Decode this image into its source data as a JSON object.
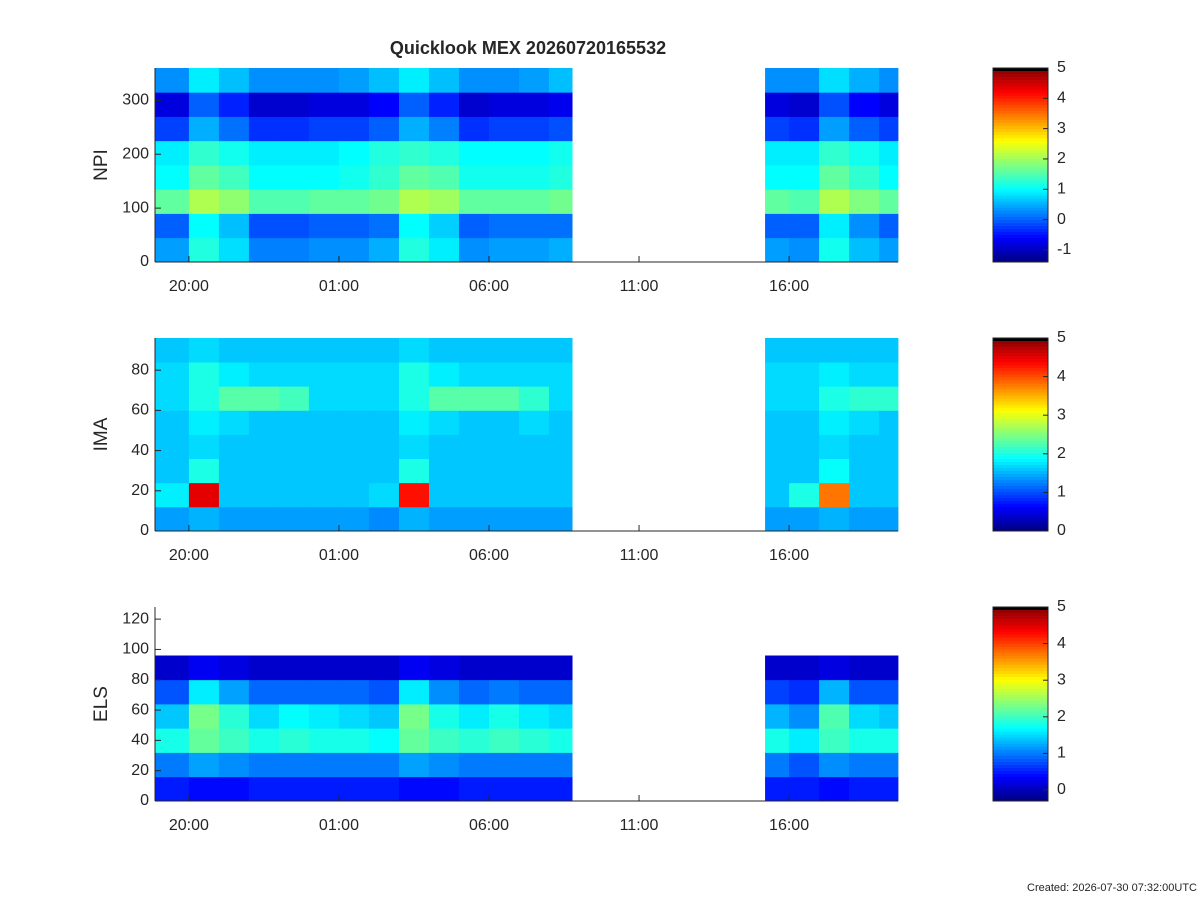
{
  "chart_data": [
    {
      "type": "heatmap",
      "title": "Quicklook MEX 20260720165532",
      "ylabel": "NPI",
      "colormap": "jet",
      "xlim": [
        18.87,
        43.63
      ],
      "xticks": [
        {
          "value": 20,
          "label": "20:00"
        },
        {
          "value": 25,
          "label": "01:00"
        },
        {
          "value": 30,
          "label": "06:00"
        },
        {
          "value": 35,
          "label": "11:00"
        },
        {
          "value": 40,
          "label": "16:00"
        }
      ],
      "ylim": [
        0,
        360
      ],
      "yticks": [
        0,
        100,
        200,
        300
      ],
      "x": [
        18.87,
        20,
        21,
        22,
        23,
        24,
        25,
        26,
        27,
        28,
        29,
        30,
        31,
        32,
        32.77,
        39.2,
        40,
        41,
        42,
        43,
        43.63
      ],
      "y": [
        0,
        45,
        90,
        135,
        180,
        225,
        270,
        315,
        360
      ],
      "z": [
        [
          0.4,
          0.0,
          1.6,
          1.0,
          0.9,
          -0.2,
          -0.8,
          0.3
        ],
        [
          1.2,
          1.0,
          2.1,
          1.6,
          1.3,
          0.5,
          0.0,
          0.9
        ],
        [
          0.8,
          0.6,
          1.9,
          1.4,
          1.1,
          0.1,
          -0.4,
          0.6
        ],
        [
          0.2,
          -0.1,
          1.5,
          1.0,
          0.9,
          -0.3,
          -0.9,
          0.3
        ],
        [
          0.2,
          -0.1,
          1.5,
          1.0,
          0.9,
          -0.3,
          -0.9,
          0.3
        ],
        [
          0.3,
          0.0,
          1.6,
          1.0,
          0.9,
          -0.2,
          -0.8,
          0.3
        ],
        [
          0.3,
          0.0,
          1.6,
          1.1,
          1.0,
          -0.2,
          -0.8,
          0.4
        ],
        [
          0.5,
          0.1,
          1.7,
          1.3,
          1.2,
          0.0,
          -0.6,
          0.6
        ],
        [
          1.2,
          1.0,
          2.1,
          1.6,
          1.3,
          0.5,
          0.0,
          0.9
        ],
        [
          0.9,
          0.7,
          2.0,
          1.5,
          1.2,
          0.2,
          -0.4,
          0.6
        ],
        [
          0.3,
          0.0,
          1.6,
          1.1,
          1.0,
          -0.3,
          -0.9,
          0.3
        ],
        [
          0.4,
          0.1,
          1.6,
          1.1,
          1.0,
          -0.2,
          -0.8,
          0.3
        ],
        [
          0.4,
          0.1,
          1.6,
          1.1,
          1.0,
          -0.2,
          -0.8,
          0.4
        ],
        [
          0.5,
          0.1,
          1.7,
          1.2,
          1.1,
          -0.1,
          -0.7,
          0.6
        ],
        [
          null,
          null,
          null,
          null,
          null,
          null,
          null,
          null
        ],
        [
          0.4,
          0.0,
          1.6,
          1.0,
          0.9,
          -0.2,
          -0.8,
          0.3
        ],
        [
          0.3,
          0.0,
          1.5,
          1.0,
          0.9,
          -0.3,
          -0.9,
          0.3
        ],
        [
          1.1,
          0.9,
          2.1,
          1.6,
          1.3,
          0.4,
          -0.1,
          0.8
        ],
        [
          0.6,
          0.3,
          1.8,
          1.3,
          1.1,
          0.0,
          -0.6,
          0.5
        ],
        [
          0.4,
          0.0,
          1.6,
          1.0,
          0.9,
          -0.2,
          -0.8,
          0.3
        ]
      ],
      "clim": [
        -1.4,
        5
      ],
      "cticks": [
        -1,
        0,
        1,
        2,
        3,
        4,
        5
      ]
    },
    {
      "type": "heatmap",
      "ylabel": "IMA",
      "colormap": "jet",
      "xlim": [
        18.87,
        43.63
      ],
      "xticks": [
        {
          "value": 20,
          "label": "20:00"
        },
        {
          "value": 25,
          "label": "01:00"
        },
        {
          "value": 30,
          "label": "06:00"
        },
        {
          "value": 35,
          "label": "11:00"
        },
        {
          "value": 40,
          "label": "16:00"
        }
      ],
      "ylim": [
        0,
        96
      ],
      "yticks": [
        0,
        20,
        40,
        60,
        80
      ],
      "x": [
        18.87,
        20,
        21,
        22,
        23,
        24,
        25,
        26,
        27,
        28,
        29,
        30,
        31,
        32,
        32.77,
        39.2,
        40,
        41,
        42,
        43,
        43.63
      ],
      "y": [
        0,
        12,
        24,
        36,
        48,
        60,
        72,
        84,
        96
      ],
      "z": [
        [
          1.4,
          1.8,
          1.6,
          1.6,
          1.6,
          1.7,
          1.7,
          1.6
        ],
        [
          1.5,
          4.5,
          2.0,
          1.7,
          1.8,
          2.0,
          2.0,
          1.7
        ],
        [
          1.4,
          1.6,
          1.6,
          1.6,
          1.7,
          2.3,
          1.8,
          1.6
        ],
        [
          1.4,
          1.6,
          1.6,
          1.6,
          1.6,
          2.3,
          1.7,
          1.6
        ],
        [
          1.4,
          1.6,
          1.6,
          1.6,
          1.6,
          2.2,
          1.7,
          1.6
        ],
        [
          1.4,
          1.6,
          1.6,
          1.6,
          1.6,
          1.7,
          1.7,
          1.6
        ],
        [
          1.4,
          1.6,
          1.6,
          1.6,
          1.6,
          1.7,
          1.7,
          1.6
        ],
        [
          1.3,
          1.7,
          1.6,
          1.6,
          1.6,
          1.7,
          1.7,
          1.6
        ],
        [
          1.5,
          4.3,
          2.0,
          1.7,
          1.8,
          2.0,
          2.0,
          1.7
        ],
        [
          1.4,
          1.6,
          1.6,
          1.6,
          1.7,
          2.3,
          1.8,
          1.6
        ],
        [
          1.4,
          1.6,
          1.6,
          1.6,
          1.6,
          2.3,
          1.7,
          1.6
        ],
        [
          1.4,
          1.6,
          1.6,
          1.6,
          1.6,
          2.3,
          1.7,
          1.6
        ],
        [
          1.4,
          1.6,
          1.6,
          1.6,
          1.7,
          2.1,
          1.7,
          1.6
        ],
        [
          1.4,
          1.6,
          1.6,
          1.6,
          1.6,
          1.7,
          1.7,
          1.6
        ],
        [
          null,
          null,
          null,
          null,
          null,
          null,
          null,
          null
        ],
        [
          1.4,
          1.6,
          1.6,
          1.6,
          1.6,
          1.7,
          1.7,
          1.6
        ],
        [
          1.4,
          2.0,
          1.6,
          1.6,
          1.6,
          1.7,
          1.7,
          1.6
        ],
        [
          1.5,
          3.8,
          1.9,
          1.7,
          1.8,
          2.0,
          1.8,
          1.6
        ],
        [
          1.4,
          1.6,
          1.6,
          1.6,
          1.7,
          2.1,
          1.7,
          1.6
        ],
        [
          1.4,
          1.6,
          1.6,
          1.6,
          1.6,
          2.1,
          1.7,
          1.6
        ]
      ],
      "clim": [
        0,
        5
      ],
      "cticks": [
        0,
        1,
        2,
        3,
        4,
        5
      ]
    },
    {
      "type": "heatmap",
      "ylabel": "ELS",
      "colormap": "jet",
      "xlim": [
        18.87,
        43.63
      ],
      "xticks": [
        {
          "value": 20,
          "label": "20:00"
        },
        {
          "value": 25,
          "label": "01:00"
        },
        {
          "value": 30,
          "label": "06:00"
        },
        {
          "value": 35,
          "label": "11:00"
        },
        {
          "value": 40,
          "label": "16:00"
        }
      ],
      "ylim": [
        0,
        128
      ],
      "yticks": [
        0,
        20,
        40,
        60,
        80,
        100,
        120
      ],
      "x": [
        18.87,
        20,
        21,
        22,
        23,
        24,
        25,
        26,
        27,
        28,
        29,
        30,
        31,
        32,
        32.77,
        39.2,
        40,
        41,
        42,
        43,
        43.63
      ],
      "y": [
        0,
        16,
        32,
        48,
        64,
        80,
        96,
        112,
        128
      ],
      "z": [
        [
          0.5,
          1.0,
          1.8,
          1.4,
          0.8,
          0.1,
          null,
          null
        ],
        [
          0.4,
          1.2,
          2.2,
          2.3,
          1.6,
          0.3,
          null,
          null
        ],
        [
          0.4,
          1.1,
          2.0,
          1.9,
          1.2,
          0.2,
          null,
          null
        ],
        [
          0.5,
          1.0,
          1.8,
          1.5,
          0.9,
          0.1,
          null,
          null
        ],
        [
          0.5,
          1.0,
          1.9,
          1.7,
          0.9,
          0.1,
          null,
          null
        ],
        [
          0.5,
          1.0,
          1.8,
          1.6,
          0.9,
          0.1,
          null,
          null
        ],
        [
          0.5,
          1.0,
          1.8,
          1.5,
          0.9,
          0.1,
          null,
          null
        ],
        [
          0.5,
          1.0,
          1.7,
          1.4,
          0.8,
          0.1,
          null,
          null
        ],
        [
          0.4,
          1.2,
          2.2,
          2.3,
          1.6,
          0.3,
          null,
          null
        ],
        [
          0.4,
          1.1,
          2.0,
          1.8,
          1.1,
          0.2,
          null,
          null
        ],
        [
          0.5,
          1.0,
          1.9,
          1.6,
          0.9,
          0.1,
          null,
          null
        ],
        [
          0.5,
          1.0,
          2.0,
          1.8,
          1.0,
          0.1,
          null,
          null
        ],
        [
          0.5,
          1.0,
          1.9,
          1.6,
          0.9,
          0.1,
          null,
          null
        ],
        [
          0.5,
          1.0,
          1.8,
          1.5,
          0.9,
          0.1,
          null,
          null
        ],
        [
          null,
          null,
          null,
          null,
          null,
          null,
          null,
          null
        ],
        [
          0.5,
          1.0,
          1.8,
          1.3,
          0.7,
          0.1,
          null,
          null
        ],
        [
          0.5,
          0.8,
          1.6,
          1.1,
          0.6,
          0.1,
          null,
          null
        ],
        [
          0.4,
          1.1,
          2.0,
          2.1,
          1.3,
          0.2,
          null,
          null
        ],
        [
          0.5,
          1.0,
          1.8,
          1.5,
          0.8,
          0.1,
          null,
          null
        ],
        [
          0.5,
          1.0,
          1.8,
          1.4,
          0.8,
          0.1,
          null,
          null
        ]
      ],
      "clim": [
        -0.3,
        5
      ],
      "cticks": [
        0,
        1,
        2,
        3,
        4,
        5
      ]
    }
  ],
  "footer": "Created: 2026-07-30 07:32:00UTC"
}
